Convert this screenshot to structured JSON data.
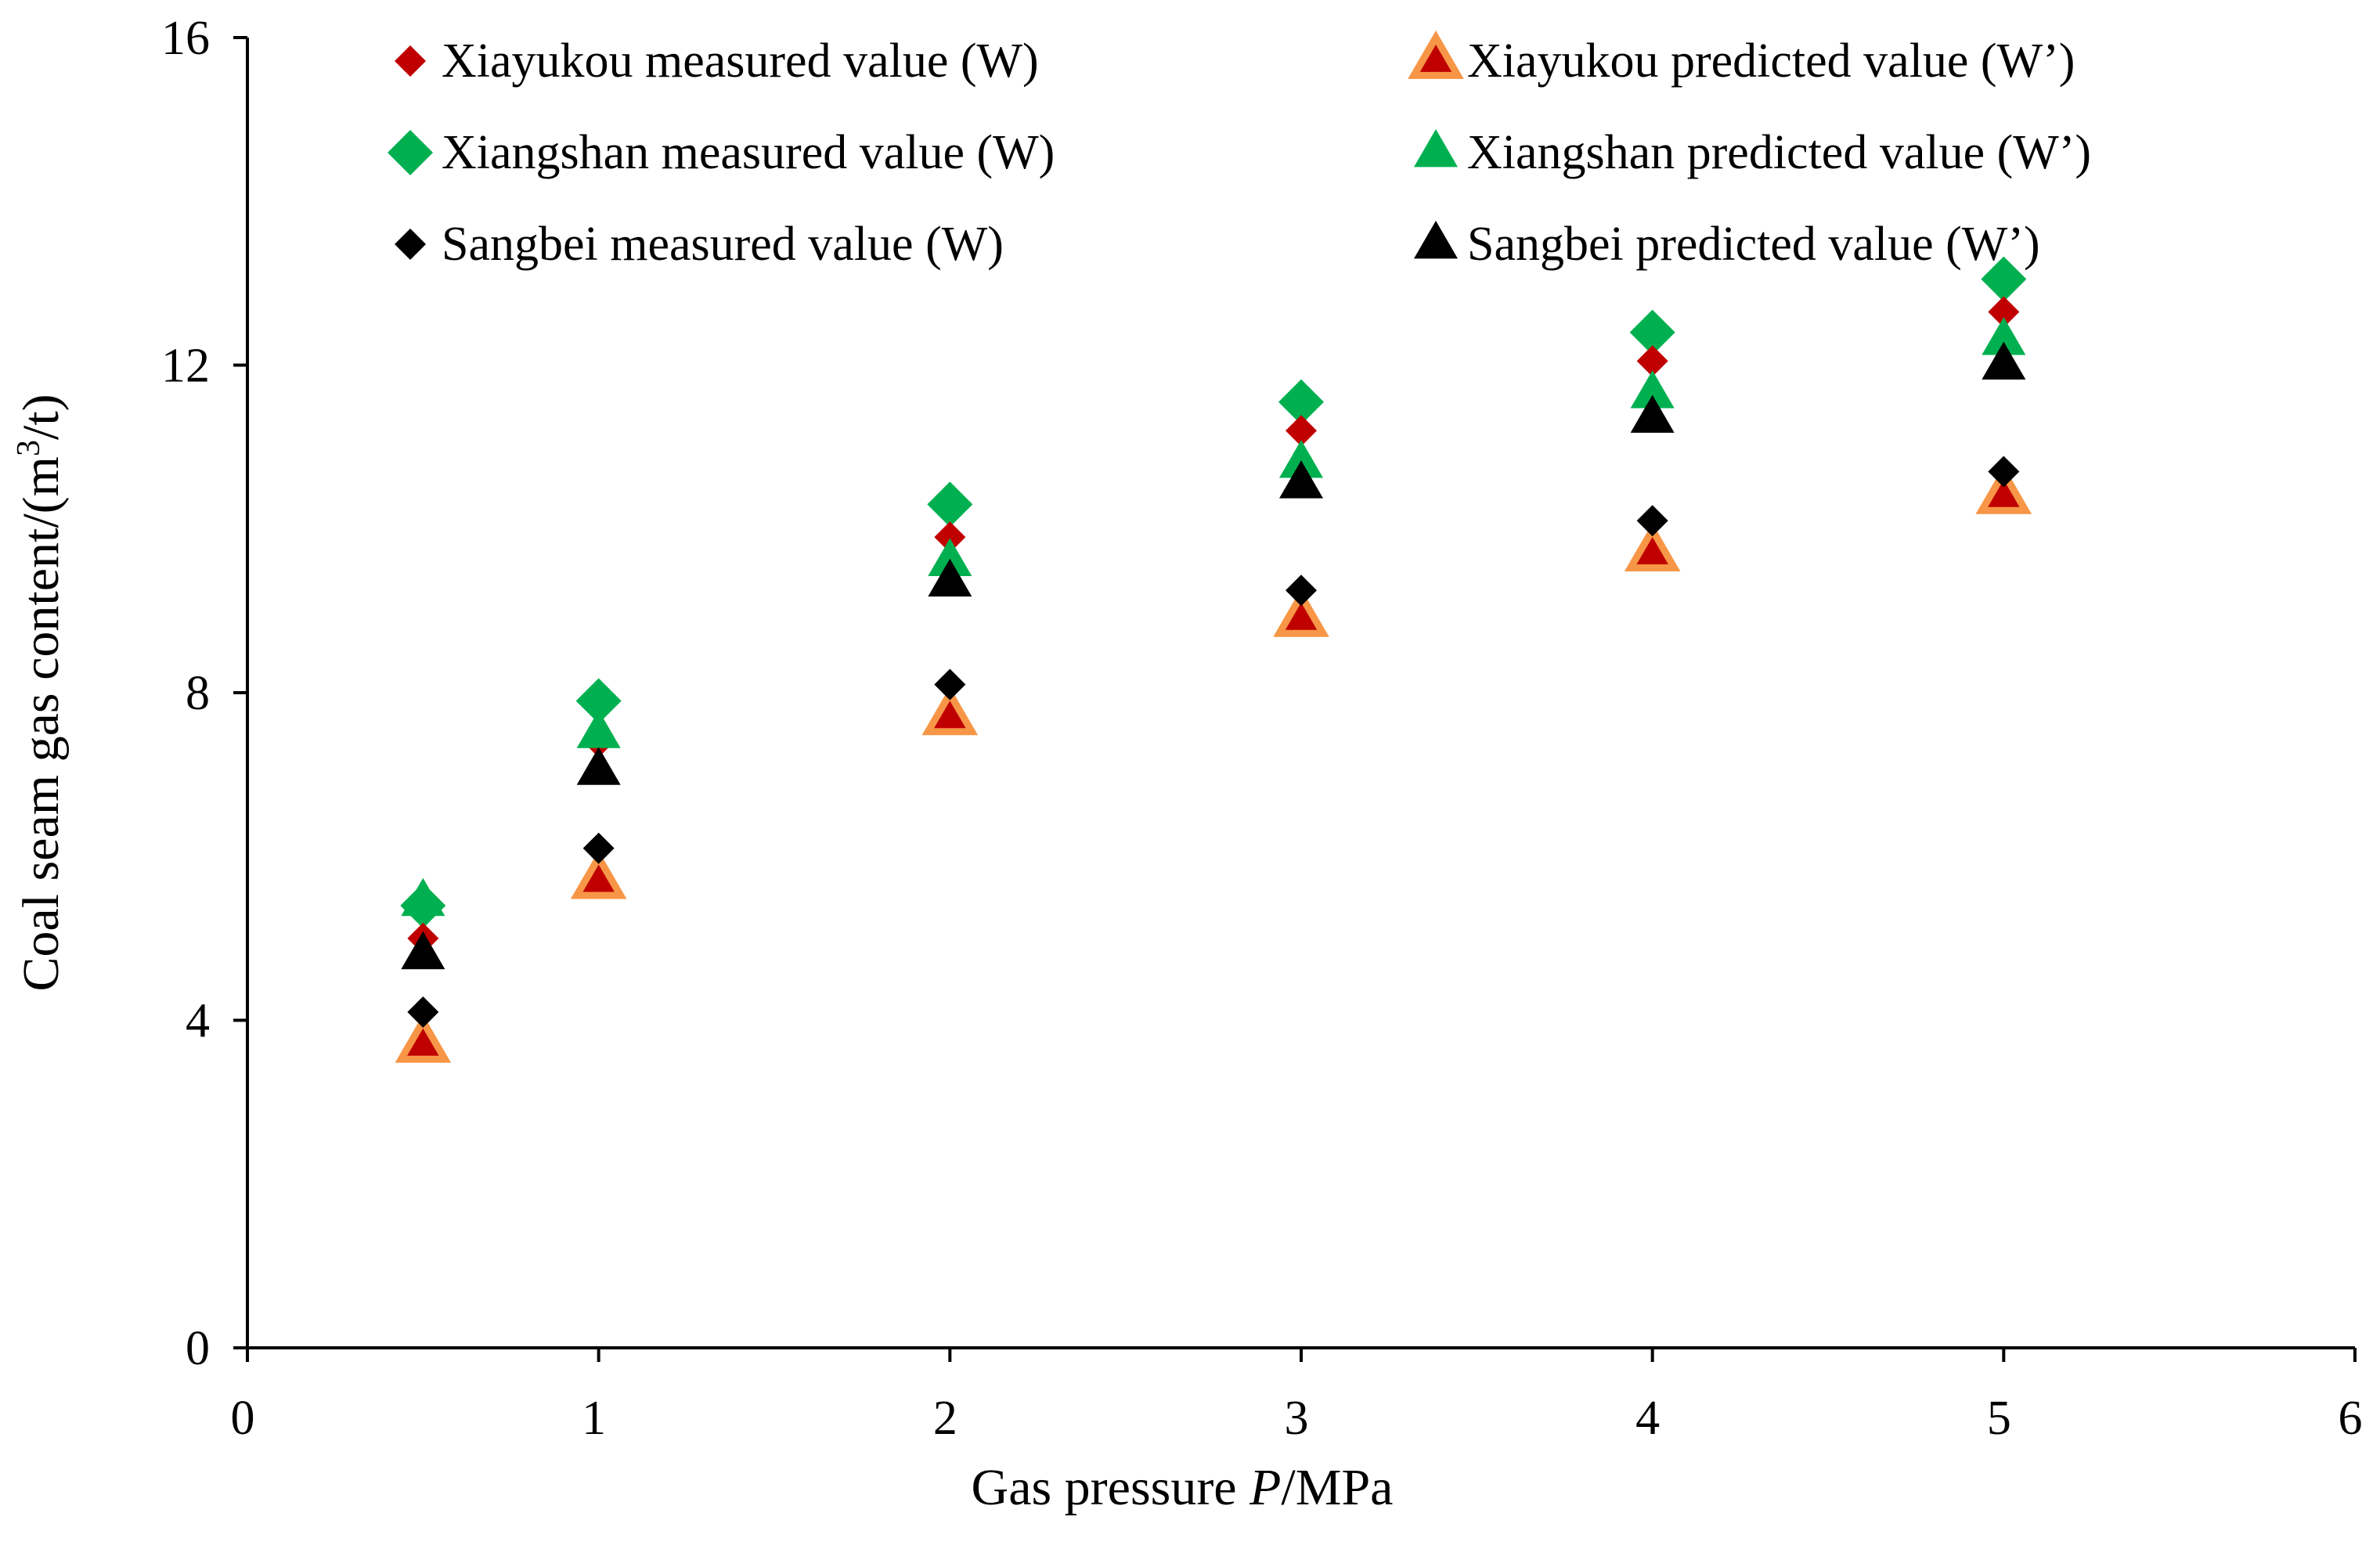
{
  "chart_data": {
    "type": "scatter",
    "title": "",
    "xlabel": {
      "prefix": "Gas pressure ",
      "italic": "P",
      "suffix": "/MPa"
    },
    "ylabel": {
      "prefix": "Coal seam gas content/(m",
      "sup": "3",
      "suffix": "/t)"
    },
    "xlim": [
      0,
      6
    ],
    "ylim": [
      0,
      16
    ],
    "xticks": [
      0,
      1,
      2,
      3,
      4,
      5,
      6
    ],
    "yticks": [
      0,
      4,
      8,
      12,
      16
    ],
    "grid": false,
    "legend_position": "top",
    "series": [
      {
        "name": "Xiayukou measured value (W)",
        "marker": "diamond",
        "size": "small",
        "color": "#C00000",
        "x": [
          0.5,
          1,
          2,
          3,
          4,
          5
        ],
        "y": [
          5.0,
          7.4,
          9.9,
          11.2,
          12.05,
          12.65
        ]
      },
      {
        "name": "Xiayukou predicted value (W’)",
        "marker": "triangle",
        "size": "large",
        "color": "#C00000",
        "edge_color": "#F79646",
        "x": [
          0.5,
          1,
          2,
          3,
          4,
          5
        ],
        "y": [
          3.7,
          5.7,
          7.7,
          8.9,
          9.7,
          10.4
        ]
      },
      {
        "name": "Xiangshan measured value (W)",
        "marker": "diamond",
        "size": "large",
        "color": "#00B050",
        "x": [
          0.5,
          1,
          2,
          3,
          4,
          5
        ],
        "y": [
          5.4,
          7.9,
          10.3,
          11.55,
          12.4,
          13.05
        ]
      },
      {
        "name": "Xiangshan predicted value (W’)",
        "marker": "triangle",
        "size": "large",
        "color": "#00B050",
        "x": [
          0.5,
          1,
          2,
          3,
          4,
          5
        ],
        "y": [
          5.45,
          7.5,
          9.6,
          10.8,
          11.65,
          12.3
        ]
      },
      {
        "name": "Sangbei measured value (W)",
        "marker": "diamond",
        "size": "small",
        "color": "#000000",
        "x": [
          0.5,
          1,
          2,
          3,
          4,
          5
        ],
        "y": [
          4.1,
          6.1,
          8.1,
          9.25,
          10.1,
          10.7
        ]
      },
      {
        "name": "Sangbei predicted value (W’)",
        "marker": "triangle",
        "size": "large",
        "color": "#000000",
        "x": [
          0.5,
          1,
          2,
          3,
          4,
          5
        ],
        "y": [
          4.8,
          7.05,
          9.35,
          10.55,
          11.35,
          12.0
        ]
      }
    ]
  }
}
